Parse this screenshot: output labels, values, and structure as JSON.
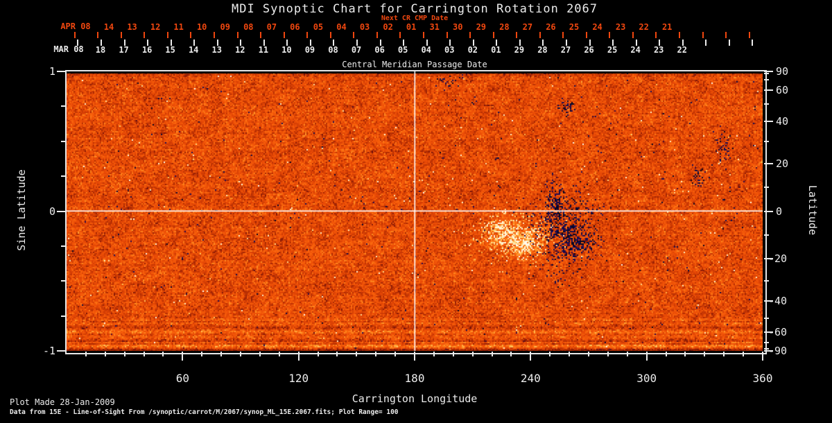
{
  "title": "MDI Synoptic Chart for Carrington Rotation 2067",
  "top_axis": {
    "label": "Next CR CMP Date",
    "month": "APR 08",
    "days": [
      "14",
      "13",
      "12",
      "11",
      "10",
      "09",
      "08",
      "07",
      "06",
      "05",
      "04",
      "03",
      "02",
      "01",
      "31",
      "30",
      "29",
      "28",
      "27",
      "26",
      "25",
      "24",
      "23",
      "22",
      "21"
    ],
    "color": "#f0470f"
  },
  "cmp_axis": {
    "label": "Central Meridian Passage Date",
    "month": "MAR 08",
    "days": [
      "18",
      "17",
      "16",
      "15",
      "14",
      "13",
      "12",
      "11",
      "10",
      "09",
      "08",
      "07",
      "06",
      "05",
      "04",
      "03",
      "02",
      "01",
      "29",
      "28",
      "27",
      "26",
      "25",
      "24",
      "23",
      "22"
    ]
  },
  "footer": {
    "line1": "Plot Made 28-Jan-2009",
    "line2": "Data from 15E - Line-of-Sight From /synoptic/carrot/M/2067/synop_ML_15E.2067.fits; Plot Range=  100"
  },
  "chart_data": {
    "type": "heatmap",
    "title": "MDI Synoptic Chart for Carrington Rotation 2067",
    "xlabel": "Carrington Longitude",
    "ylabel_left": "Sine Latitude",
    "ylabel_right": "Latitude",
    "x_range": [
      0,
      360
    ],
    "x_ticks": [
      60,
      120,
      180,
      240,
      300,
      360
    ],
    "x_minor_step_deg": 10,
    "y_sine_range": [
      -1,
      1
    ],
    "y_sine_tick_labels": [
      "1",
      "0",
      "-1"
    ],
    "y_sine_tick_values": [
      1,
      0,
      -1
    ],
    "y_sine_minor_ticks": [
      0.75,
      0.5,
      0.25,
      -0.25,
      -0.5,
      -0.75
    ],
    "latitude_ticks": [
      90,
      60,
      40,
      20,
      0,
      -20,
      -40,
      -60,
      -90
    ],
    "latitude_minor_ticks": [
      80,
      70,
      50,
      30,
      10,
      -10,
      -30,
      -50,
      -70,
      -80
    ],
    "value_range_gauss": [
      -100,
      100
    ],
    "colormap": "red-temperature: orange base, white/yellow = positive flux, dark navy/black = negative flux",
    "reference_lines": {
      "meridian_longitude": 180,
      "equator_sine_latitude": 0
    },
    "grid": false,
    "features": [
      {
        "name": "active-region-negative-core",
        "polarity": "negative",
        "lon": 258.0,
        "lat": -8.5,
        "slon": 9.3,
        "ssin": 0.149,
        "p": 0.4
      },
      {
        "name": "active-region-negative-north",
        "polarity": "negative",
        "lon": 252.5,
        "lat": 2.4,
        "slon": 3.2,
        "ssin": 0.109,
        "p": 0.5
      },
      {
        "name": "active-region-negative-south",
        "polarity": "negative",
        "lon": 263.5,
        "lat": -13.0,
        "slon": 4.3,
        "ssin": 0.05,
        "p": 0.5
      },
      {
        "name": "high-lat-negative-cluster",
        "polarity": "negative",
        "lon": 259.0,
        "lat": 48.7,
        "slon": 2.2,
        "ssin": 0.03,
        "p": 0.55
      },
      {
        "name": "east-negative-specks-1",
        "polarity": "negative",
        "lon": 326.0,
        "lat": 14.2,
        "slon": 1.8,
        "ssin": 0.035,
        "p": 0.5
      },
      {
        "name": "east-negative-specks-2",
        "polarity": "negative",
        "lon": 339.5,
        "lat": 28.0,
        "slon": 1.8,
        "ssin": 0.06,
        "p": 0.45
      },
      {
        "name": "north-negative-specks",
        "polarity": "negative",
        "lon": 199.0,
        "lat": 68.5,
        "slon": 3.6,
        "ssin": 0.025,
        "p": 0.3
      },
      {
        "name": "active-region-plage-main",
        "polarity": "positive",
        "lon": 232.7,
        "lat": -10.1,
        "slon": 10.8,
        "ssin": 0.089,
        "a": 0.5
      },
      {
        "name": "active-region-plage-core",
        "polarity": "positive",
        "lon": 237.4,
        "lat": -13.9,
        "slon": 4.3,
        "ssin": 0.045,
        "a": 0.8
      },
      {
        "name": "active-region-plage-west",
        "polarity": "positive",
        "lon": 223.0,
        "lat": -7.5,
        "slon": 5.0,
        "ssin": 0.05,
        "a": 0.45
      }
    ],
    "noise": "salt-and-pepper magnetic speckles at all longitudes, denser near equator and east of 180; horizontal scan streaks near sine latitude -1 and +1"
  }
}
